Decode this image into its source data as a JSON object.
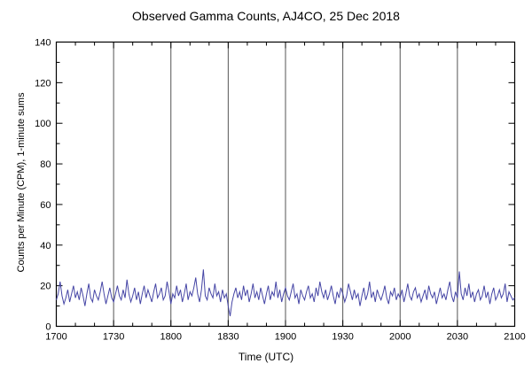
{
  "chart_data": {
    "type": "line",
    "title": "Observed Gamma Counts, AJ4CO, 25 Dec 2018",
    "xlabel": "Time (UTC)",
    "ylabel": "Counts per Minute (CPM), 1-minute sums",
    "x_start_minute": 0,
    "x_end_minute": 240,
    "x_tick_labels": [
      "1700",
      "1730",
      "1800",
      "1830",
      "1900",
      "1930",
      "2000",
      "2030",
      "2100"
    ],
    "x_major_step_minutes": 30,
    "x_minor_step_minutes": 10,
    "ylim": [
      0,
      140
    ],
    "y_tick_labels": [
      "0",
      "20",
      "40",
      "60",
      "80",
      "100",
      "120",
      "140"
    ],
    "y_major_step": 20,
    "grid": "vertical-only",
    "legend": "none",
    "line_color": "#4545a5",
    "grid_color": "#555555",
    "frame_color": "#000000",
    "values": [
      13,
      16,
      22,
      15,
      11,
      14,
      18,
      12,
      16,
      20,
      14,
      17,
      13,
      19,
      15,
      10,
      16,
      21,
      14,
      12,
      18,
      15,
      13,
      17,
      22,
      16,
      11,
      15,
      19,
      14,
      12,
      16,
      20,
      15,
      13,
      18,
      14,
      23,
      16,
      12,
      15,
      19,
      13,
      17,
      11,
      16,
      20,
      14,
      18,
      15,
      12,
      17,
      21,
      14,
      16,
      19,
      13,
      15,
      22,
      17,
      11,
      16,
      14,
      20,
      15,
      18,
      12,
      16,
      21,
      13,
      17,
      15,
      19,
      24,
      16,
      12,
      18,
      28,
      15,
      13,
      19,
      16,
      14,
      21,
      15,
      17,
      12,
      18,
      14,
      16,
      10,
      5,
      12,
      16,
      19,
      14,
      17,
      13,
      20,
      15,
      18,
      12,
      16,
      21,
      14,
      17,
      13,
      19,
      15,
      11,
      16,
      20,
      13,
      17,
      15,
      22,
      14,
      18,
      12,
      16,
      19,
      15,
      13,
      17,
      21,
      14,
      16,
      11,
      18,
      15,
      13,
      17,
      20,
      14,
      16,
      12,
      19,
      15,
      22,
      17,
      14,
      18,
      13,
      16,
      20,
      15,
      11,
      17,
      14,
      19,
      16,
      12,
      15,
      21,
      17,
      13,
      18,
      14,
      16,
      10,
      15,
      19,
      13,
      16,
      22,
      14,
      17,
      12,
      18,
      15,
      13,
      16,
      20,
      14,
      11,
      17,
      15,
      19,
      13,
      16,
      14,
      18,
      12,
      16,
      21,
      15,
      13,
      17,
      19,
      14,
      16,
      12,
      15,
      18,
      13,
      20,
      16,
      14,
      17,
      11,
      15,
      19,
      14,
      16,
      13,
      18,
      22,
      15,
      12,
      17,
      14,
      27,
      16,
      13,
      19,
      15,
      21,
      14,
      17,
      12,
      16,
      18,
      13,
      15,
      20,
      14,
      17,
      11,
      16,
      19,
      13,
      15,
      18,
      14,
      16,
      21,
      12,
      17,
      15,
      13,
      14
    ]
  }
}
